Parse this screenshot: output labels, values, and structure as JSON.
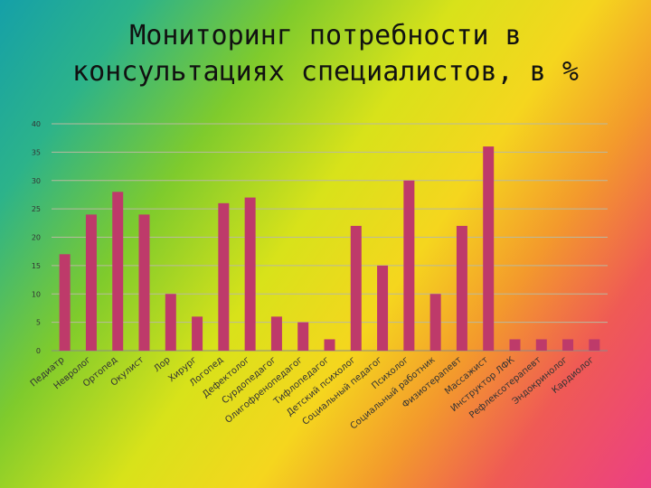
{
  "title_line1": "Мониторинг потребности в",
  "title_line2": "консультациях специалистов, в %",
  "chart_data": {
    "type": "bar",
    "categories": [
      "Педиатр",
      "Невролог",
      "Ортопед",
      "Окулист",
      "Лор",
      "Хирург",
      "Логопед",
      "Дефектолог",
      "Сурдопедагог",
      "Олигофренопедагог",
      "Тифлопедагог",
      "Детский психолог",
      "Социальный педагог",
      "Психолог",
      "Социальный работник",
      "Физиотерапевт",
      "Массажист",
      "Инструктор ЛФК",
      "Рефлексотерапевт",
      "Эндокринолог",
      "Кардиолог"
    ],
    "values": [
      17,
      24,
      28,
      24,
      10,
      6,
      26,
      27,
      6,
      5,
      2,
      22,
      15,
      30,
      10,
      22,
      36,
      2,
      2,
      2,
      2
    ],
    "ylim": [
      0,
      40
    ],
    "yticks": [
      0,
      5,
      10,
      15,
      20,
      25,
      30,
      35,
      40
    ],
    "bar_color": "#be3a6a",
    "grid": true
  }
}
